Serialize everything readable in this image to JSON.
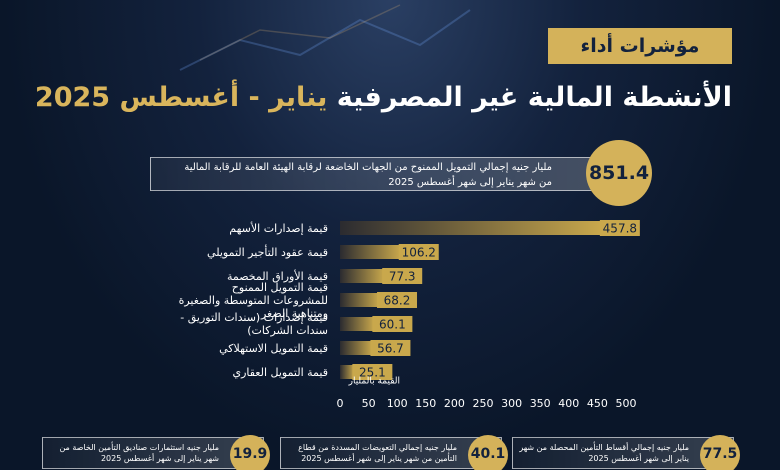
{
  "header": {
    "badge": "مؤشرات أداء",
    "title_main": "الأنشطة المالية غير المصرفية",
    "title_period": "يناير - أغسطس 2025"
  },
  "highlight": {
    "value": 851.4,
    "line1": "مليار جنيه إجمالي التمويل الممنوح من الجهات الخاضعة لرقابة الهيئة العامة للرقابة المالية",
    "line2": "من شهر يناير إلى شهر أغسطس 2025"
  },
  "chart_data": {
    "type": "hbar",
    "categories": [
      "قيمة إصدارات الأسهم",
      "قيمة عقود التأجير التمويلي",
      "قيمة الأوراق المخصمة",
      "قيمة التمويل الممنوح للمشروعات المتوسطة والصغيرة ومتناهية الصغر",
      "قيمة إصدارات (سندات التوريق - سندات الشركات)",
      "قيمة التمويل الاستهلاكي",
      "قيمة التمويل العقاري"
    ],
    "values": [
      457.8,
      106.2,
      77.3,
      68.2,
      60.1,
      56.7,
      25.1
    ],
    "color": "#c9a84c",
    "xlabel": "القيمة بالمليار",
    "xlim": [
      0,
      500
    ],
    "xticks": [
      0,
      50,
      100,
      150,
      200,
      250,
      300,
      350,
      400,
      450,
      500
    ],
    "grid": false
  },
  "cards": [
    {
      "value": 19.9,
      "text": "مليار جنيه استثمارات صناديق التأمين الخاصة من شهر يناير إلى شهر أغسطس 2025"
    },
    {
      "value": 40.1,
      "text": "مليار جنيه إجمالي التعويضات المسددة من قطاع التأمين من شهر يناير إلى شهر أغسطس 2025"
    },
    {
      "value": 77.5,
      "text": "مليار جنيه إجمالي أقساط التأمين المحصلة من شهر يناير إلى شهر أغسطس 2025"
    }
  ]
}
